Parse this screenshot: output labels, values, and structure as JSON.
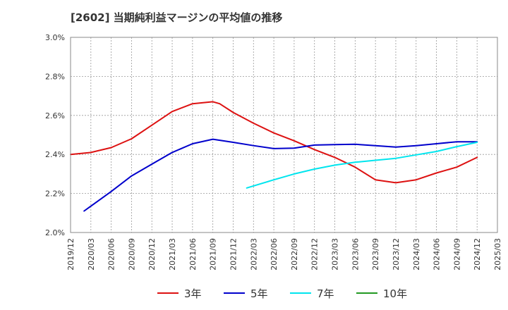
{
  "title": "[2602]  当期純利益マージンの平均値の推移",
  "chart_data": {
    "type": "line",
    "title": "[2602]  当期純利益マージンの平均値の推移",
    "xlabel": "",
    "ylabel": "",
    "x_ticks": [
      "2019/12",
      "2020/03",
      "2020/06",
      "2020/09",
      "2020/12",
      "2021/03",
      "2021/06",
      "2021/09",
      "2021/12",
      "2022/03",
      "2022/06",
      "2022/09",
      "2022/12",
      "2023/03",
      "2023/06",
      "2023/09",
      "2023/12",
      "2024/03",
      "2024/06",
      "2024/09",
      "2024/12",
      "2025/03"
    ],
    "y_ticks": [
      "2.0%",
      "2.2%",
      "2.4%",
      "2.6%",
      "2.8%",
      "3.0%"
    ],
    "ylim": [
      2.0,
      3.0
    ],
    "grid": true,
    "legend_position": "bottom",
    "series": [
      {
        "name": "3年",
        "color": "#dd1111",
        "x": [
          "2019/12",
          "2020/03",
          "2020/06",
          "2020/09",
          "2020/12",
          "2021/03",
          "2021/06",
          "2021/09",
          "2021/10",
          "2021/12",
          "2022/03",
          "2022/06",
          "2022/09",
          "2022/12",
          "2023/03",
          "2023/06",
          "2023/09",
          "2023/12",
          "2024/03",
          "2024/06",
          "2024/09",
          "2024/12"
        ],
        "values": [
          2.4,
          2.41,
          2.435,
          2.48,
          2.55,
          2.62,
          2.66,
          2.67,
          2.66,
          2.615,
          2.56,
          2.51,
          2.47,
          2.425,
          2.385,
          2.335,
          2.27,
          2.255,
          2.27,
          2.305,
          2.335,
          2.385
        ]
      },
      {
        "name": "5年",
        "color": "#0000cc",
        "x": [
          "2020/02",
          "2020/06",
          "2020/09",
          "2020/12",
          "2021/03",
          "2021/06",
          "2021/09",
          "2021/12",
          "2022/03",
          "2022/06",
          "2022/09",
          "2022/12",
          "2023/03",
          "2023/06",
          "2023/09",
          "2023/12",
          "2024/03",
          "2024/06",
          "2024/09",
          "2024/12"
        ],
        "values": [
          2.11,
          2.21,
          2.29,
          2.35,
          2.41,
          2.455,
          2.478,
          2.462,
          2.445,
          2.43,
          2.432,
          2.448,
          2.45,
          2.452,
          2.445,
          2.438,
          2.445,
          2.455,
          2.465,
          2.465
        ]
      },
      {
        "name": "7年",
        "color": "#00e5ee",
        "x": [
          "2022/02",
          "2022/06",
          "2022/09",
          "2022/12",
          "2023/03",
          "2023/06",
          "2023/09",
          "2023/12",
          "2024/03",
          "2024/06",
          "2024/09",
          "2024/12"
        ],
        "values": [
          2.228,
          2.27,
          2.3,
          2.325,
          2.345,
          2.36,
          2.37,
          2.38,
          2.398,
          2.415,
          2.44,
          2.462
        ]
      },
      {
        "name": "10年",
        "color": "#229922",
        "x": [],
        "values": []
      }
    ]
  }
}
